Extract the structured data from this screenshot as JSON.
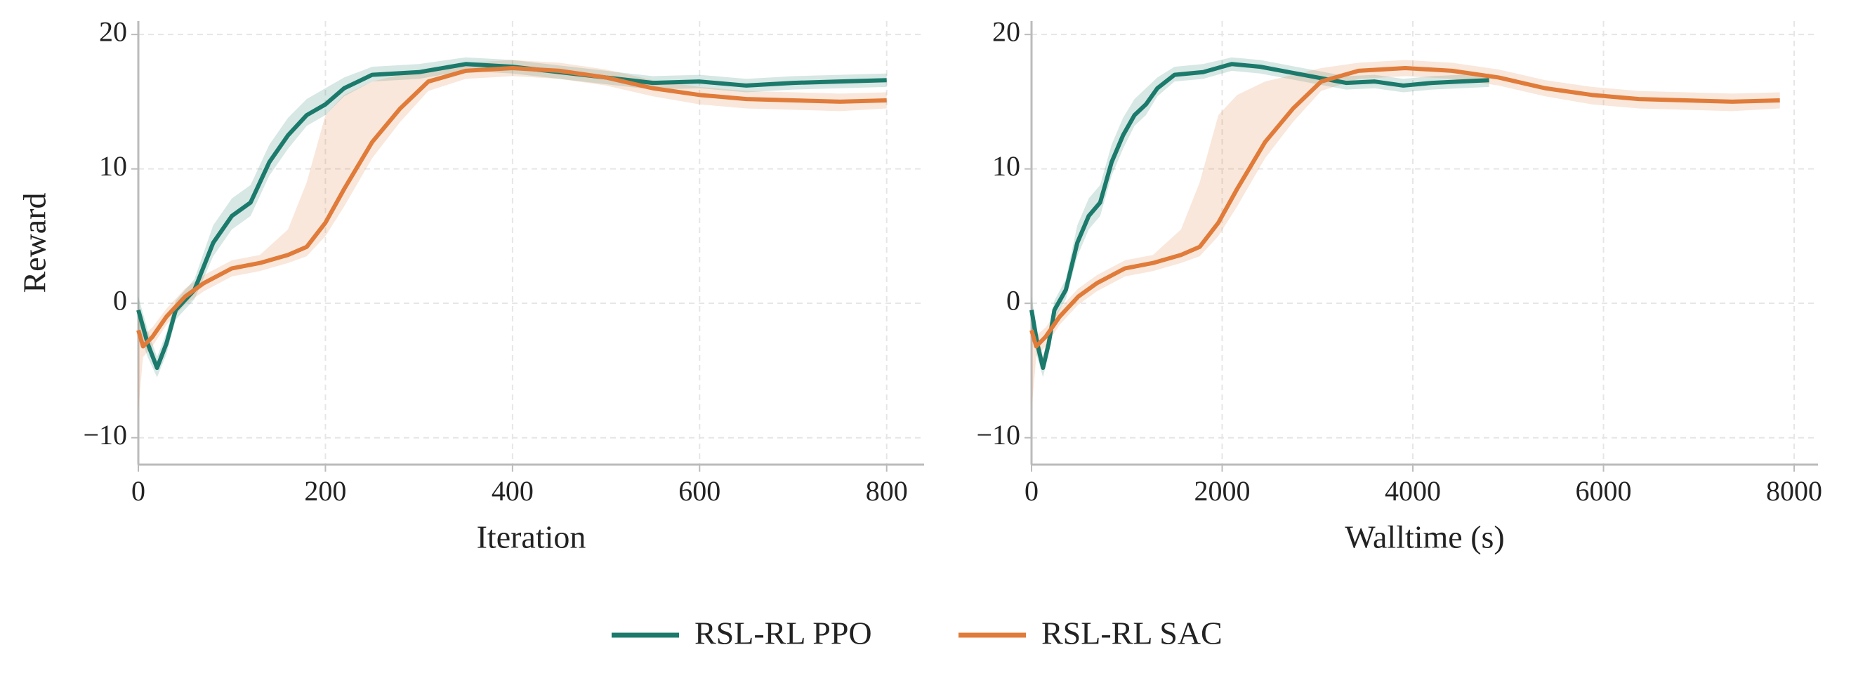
{
  "chart_data": [
    {
      "type": "line",
      "xlabel": "Iteration",
      "ylabel": "Reward",
      "xlim": [
        0,
        840
      ],
      "ylim": [
        -12,
        21
      ],
      "xticks": [
        0,
        200,
        400,
        600,
        800
      ],
      "yticks": [
        {
          "value": -10,
          "label": "−10"
        },
        0,
        10,
        20
      ],
      "grid": true,
      "series": [
        {
          "name": "RSL-RL PPO",
          "color": "#1b7a6b",
          "x": [
            0,
            10,
            20,
            30,
            40,
            60,
            80,
            100,
            120,
            140,
            160,
            180,
            200,
            220,
            250,
            300,
            350,
            400,
            450,
            500,
            550,
            600,
            650,
            700,
            750,
            800
          ],
          "values": [
            -0.5,
            -3,
            -4.8,
            -3,
            -0.5,
            1,
            4.5,
            6.5,
            7.5,
            10.5,
            12.5,
            14,
            14.8,
            16,
            17,
            17.2,
            17.8,
            17.6,
            17.2,
            16.8,
            16.4,
            16.5,
            16.2,
            16.4,
            16.5,
            16.6
          ],
          "lower": [
            -2,
            -4,
            -5.5,
            -3.8,
            -1.2,
            0.3,
            3.5,
            5.5,
            6.5,
            9.5,
            11.5,
            13.2,
            14,
            15.4,
            16.5,
            16.7,
            17.3,
            17.1,
            16.7,
            16.3,
            15.9,
            16,
            15.7,
            15.9,
            16,
            16.1
          ],
          "upper": [
            0.5,
            -2,
            -4,
            -2.2,
            0.2,
            1.8,
            5.8,
            7.8,
            8.8,
            11.8,
            13.8,
            15.2,
            16,
            16.8,
            17.6,
            17.8,
            18.3,
            18.1,
            17.7,
            17.3,
            16.9,
            17,
            16.7,
            16.9,
            17,
            17.1
          ]
        },
        {
          "name": "RSL-RL SAC",
          "color": "#e07b39",
          "x": [
            0,
            5,
            15,
            30,
            50,
            70,
            100,
            130,
            160,
            180,
            200,
            220,
            250,
            280,
            310,
            350,
            400,
            450,
            500,
            550,
            600,
            650,
            700,
            750,
            800
          ],
          "values": [
            -2,
            -3.2,
            -2.5,
            -1,
            0.5,
            1.5,
            2.6,
            3,
            3.6,
            4.2,
            6,
            8.5,
            12,
            14.5,
            16.5,
            17.3,
            17.5,
            17.3,
            16.8,
            16,
            15.5,
            15.2,
            15.1,
            15,
            15.1
          ],
          "lower": [
            -8,
            -4,
            -3.2,
            -1.6,
            -0.1,
            0.9,
            2,
            2.4,
            3,
            3.5,
            5,
            7.2,
            10.8,
            13.5,
            15.8,
            16.7,
            16.9,
            16.7,
            16.2,
            15.4,
            14.8,
            14.5,
            14.4,
            14.3,
            14.5
          ],
          "upper": [
            0,
            -2.4,
            -1.8,
            -0.4,
            1.1,
            2.1,
            3.2,
            3.6,
            5.5,
            9,
            14,
            15.5,
            16.5,
            17,
            17.5,
            17.9,
            18.1,
            17.9,
            17.4,
            16.6,
            16.1,
            15.8,
            15.7,
            15.6,
            15.7
          ]
        }
      ]
    },
    {
      "type": "line",
      "xlabel": "Walltime (s)",
      "xlim": [
        0,
        8250
      ],
      "ylim": [
        -12,
        21
      ],
      "xticks": [
        0,
        2000,
        4000,
        6000,
        8000
      ],
      "yticks": [
        {
          "value": -10,
          "label": "−10"
        },
        0,
        10,
        20
      ],
      "grid": true,
      "series": [
        {
          "color": "#1b7a6b",
          "x": [
            0,
            60,
            120,
            180,
            240,
            360,
            480,
            600,
            720,
            840,
            960,
            1080,
            1200,
            1320,
            1500,
            1800,
            2100,
            2400,
            2700,
            3000,
            3300,
            3600,
            3900,
            4200,
            4500,
            4800
          ],
          "values": [
            -0.5,
            -3,
            -4.8,
            -3,
            -0.5,
            1,
            4.5,
            6.5,
            7.5,
            10.5,
            12.5,
            14,
            14.8,
            16,
            17,
            17.2,
            17.8,
            17.6,
            17.2,
            16.8,
            16.4,
            16.5,
            16.2,
            16.4,
            16.5,
            16.6
          ],
          "lower": [
            -2,
            -4,
            -5.5,
            -3.8,
            -1.2,
            0.3,
            3.5,
            5.5,
            6.5,
            9.5,
            11.5,
            13.2,
            14,
            15.4,
            16.5,
            16.7,
            17.3,
            17.1,
            16.7,
            16.3,
            15.9,
            16,
            15.7,
            15.9,
            16,
            16.1
          ],
          "upper": [
            0.5,
            -2,
            -4,
            -2.2,
            0.2,
            1.8,
            5.8,
            7.8,
            8.8,
            11.8,
            13.8,
            15.2,
            16,
            16.8,
            17.6,
            17.8,
            18.3,
            18.1,
            17.7,
            17.3,
            16.9,
            17,
            16.7,
            16.9,
            17,
            17.1
          ]
        },
        {
          "color": "#e07b39",
          "x": [
            0,
            49,
            147,
            294,
            490,
            686,
            980,
            1274,
            1568,
            1764,
            1960,
            2156,
            2450,
            2744,
            3038,
            3430,
            3920,
            4410,
            4900,
            5390,
            5880,
            6370,
            6860,
            7350,
            7850
          ],
          "values": [
            -2,
            -3.2,
            -2.5,
            -1,
            0.5,
            1.5,
            2.6,
            3,
            3.6,
            4.2,
            6,
            8.5,
            12,
            14.5,
            16.5,
            17.3,
            17.5,
            17.3,
            16.8,
            16,
            15.5,
            15.2,
            15.1,
            15,
            15.1
          ],
          "lower": [
            -8,
            -4,
            -3.2,
            -1.6,
            -0.1,
            0.9,
            2,
            2.4,
            3,
            3.5,
            5,
            7.2,
            10.8,
            13.5,
            15.8,
            16.7,
            16.9,
            16.7,
            16.2,
            15.4,
            14.8,
            14.5,
            14.4,
            14.3,
            14.5
          ],
          "upper": [
            0,
            -2.4,
            -1.8,
            -0.4,
            1.1,
            2.1,
            3.2,
            3.6,
            5.5,
            9,
            14,
            15.5,
            16.5,
            17,
            17.5,
            17.9,
            18.1,
            17.9,
            17.4,
            16.6,
            16.1,
            15.8,
            15.7,
            15.6,
            15.7
          ]
        }
      ]
    }
  ]
}
